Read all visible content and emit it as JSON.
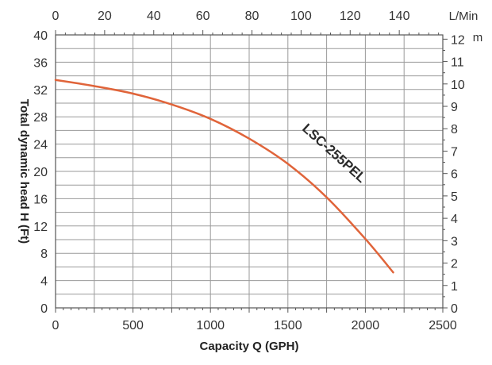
{
  "chart_data": {
    "type": "line",
    "title": "",
    "xlabel": "Capacity Q (GPH)",
    "ylabel": "Total dynamic head H (Ft)",
    "xlim": [
      0,
      2500
    ],
    "ylim": [
      0,
      40
    ],
    "x_ticks": [
      0,
      500,
      1000,
      1500,
      2000,
      2500
    ],
    "y_ticks": [
      0,
      4,
      8,
      12,
      16,
      20,
      24,
      28,
      32,
      36,
      40
    ],
    "secondary_x_axis": {
      "unit": "L/Min",
      "range": [
        0,
        157.73
      ],
      "ticks": [
        0,
        20,
        40,
        60,
        80,
        100,
        120,
        140
      ]
    },
    "secondary_y_axis": {
      "unit": "m",
      "range": [
        0,
        12.19
      ],
      "ticks": [
        0,
        1,
        2,
        3,
        4,
        5,
        6,
        7,
        8,
        9,
        10,
        11,
        12
      ]
    },
    "grid": true,
    "series": [
      {
        "name": "LSC-255PEL",
        "color": "#e0643a",
        "x": [
          0,
          250,
          500,
          750,
          1000,
          1250,
          1500,
          1750,
          2000,
          2180
        ],
        "y": [
          33.4,
          32.5,
          31.4,
          29.8,
          27.7,
          24.8,
          21.1,
          16.2,
          10.1,
          5.2
        ]
      }
    ],
    "annotation": {
      "text": "LSC-255PEL",
      "rotation_deg": 42
    }
  }
}
